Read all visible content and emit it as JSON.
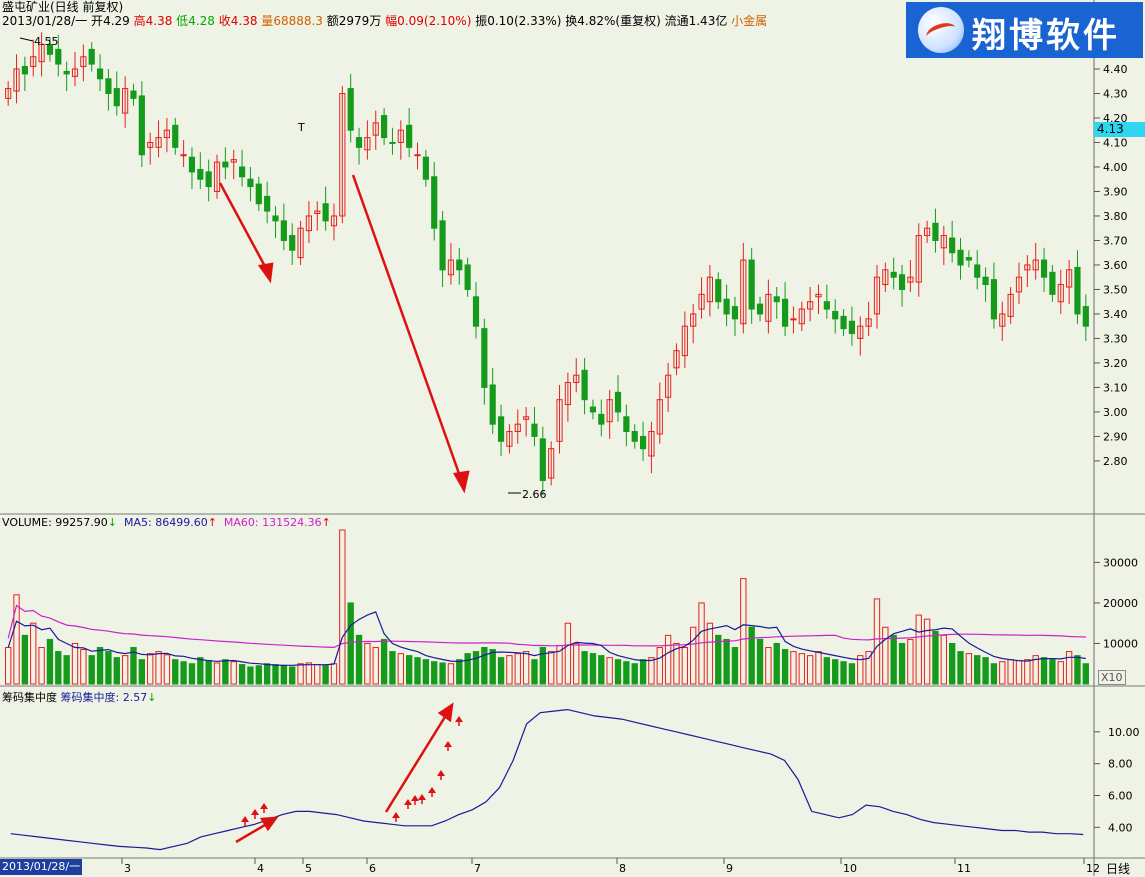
{
  "header": {
    "title": "盛屯矿业(日线 前复权)",
    "date": "2013/01/28/一",
    "open_label": "开",
    "open": "4.29",
    "high_label": "高",
    "high": "4.38",
    "low_label": "低",
    "low": "4.28",
    "close_label": "收",
    "close": "4.38",
    "vol_label": "量",
    "vol": "68888.3",
    "amount_label": "额",
    "amount": "2979万",
    "change_label": "幅",
    "change": "0.09(2.10%)",
    "amp_label": "振",
    "amp": "0.10(2.33%)",
    "turn_label": "换",
    "turn": "4.82%(重复权)",
    "float_label": "流通",
    "float": "1.43亿",
    "sector": "小金属"
  },
  "logo": {
    "text": "翔博软件"
  },
  "price_tag": "4.13",
  "marks": {
    "high": "4.55",
    "low": "2.66",
    "t_mark": "T"
  },
  "volume_header": {
    "label": "VOLUME: 99257.90",
    "ma5": "MA5: 86499.60",
    "ma60": "MA60: 131524.36",
    "down_arrow": "↓",
    "up_arrow": "↑"
  },
  "chip_header": {
    "title": "筹码集中度",
    "label": "筹码集中度: 2.57",
    "arrow": "↓"
  },
  "x10": "X10",
  "bottom_date": "2013/01/28/一",
  "period": "日线",
  "colors": {
    "up": "#e8201c",
    "down": "#159a1b",
    "ma5": "#1a1a9a",
    "ma60": "#cc22cc",
    "chip": "#1a1a9a",
    "arrow": "#dd1111"
  },
  "chart_data": [
    {
      "type": "candlestick",
      "title": "盛屯矿业(日线 前复权)",
      "y_ticks": [
        2.8,
        2.9,
        3.0,
        3.1,
        3.2,
        3.3,
        3.4,
        3.5,
        3.6,
        3.7,
        3.8,
        3.9,
        4.0,
        4.1,
        4.2,
        4.3,
        4.4
      ],
      "ylim": [
        2.62,
        4.6
      ],
      "annotations": [
        "4.55",
        "2.66",
        "T"
      ],
      "closes": [
        4.32,
        4.4,
        4.38,
        4.45,
        4.5,
        4.46,
        4.42,
        4.38,
        4.4,
        4.45,
        4.42,
        4.36,
        4.3,
        4.25,
        4.32,
        4.28,
        4.05,
        4.1,
        4.12,
        4.15,
        4.08,
        4.05,
        3.98,
        3.95,
        3.92,
        4.02,
        4.0,
        4.03,
        3.96,
        3.92,
        3.85,
        3.82,
        3.78,
        3.7,
        3.66,
        3.75,
        3.8,
        3.82,
        3.78,
        3.8,
        4.3,
        4.15,
        4.08,
        4.12,
        4.18,
        4.12,
        4.1,
        4.15,
        4.08,
        4.05,
        3.95,
        3.75,
        3.58,
        3.62,
        3.58,
        3.5,
        3.35,
        3.1,
        2.95,
        2.88,
        2.92,
        2.95,
        2.98,
        2.9,
        2.72,
        2.85,
        3.05,
        3.12,
        3.15,
        3.05,
        3.0,
        2.95,
        3.05,
        3.0,
        2.92,
        2.88,
        2.85,
        2.92,
        3.05,
        3.15,
        3.25,
        3.35,
        3.4,
        3.48,
        3.55,
        3.45,
        3.4,
        3.38,
        3.62,
        3.42,
        3.4,
        3.48,
        3.45,
        3.35,
        3.38,
        3.42,
        3.45,
        3.48,
        3.42,
        3.38,
        3.34,
        3.32,
        3.35,
        3.38,
        3.55,
        3.58,
        3.55,
        3.5,
        3.55,
        3.72,
        3.75,
        3.7,
        3.72,
        3.65,
        3.6,
        3.62,
        3.55,
        3.52,
        3.38,
        3.4,
        3.48,
        3.55,
        3.6,
        3.62,
        3.55,
        3.48,
        3.52,
        3.58,
        3.4,
        3.35
      ]
    },
    {
      "type": "bar",
      "title": "VOLUME",
      "y_ticks": [
        10000,
        20000,
        30000
      ],
      "ylim": [
        0,
        38000
      ],
      "series": [
        {
          "name": "MA5",
          "values": []
        },
        {
          "name": "MA60",
          "values": []
        }
      ],
      "values": [
        9000,
        22000,
        12000,
        15000,
        9000,
        11000,
        8000,
        7000,
        10000,
        8500,
        7000,
        9000,
        8000,
        6500,
        7000,
        9000,
        6000,
        7500,
        8000,
        7200,
        6000,
        5500,
        5000,
        6500,
        5800,
        5200,
        6000,
        5500,
        4800,
        4200,
        4500,
        5000,
        4800,
        4600,
        4200,
        5000,
        5200,
        4800,
        4600,
        5000,
        38000,
        20000,
        12000,
        10000,
        9000,
        11000,
        8000,
        7500,
        7000,
        6500,
        6000,
        5500,
        5200,
        5000,
        6000,
        7500,
        8000,
        9000,
        8500,
        6500,
        7000,
        7500,
        8000,
        6000,
        9000,
        8000,
        9500,
        15000,
        10000,
        8000,
        7500,
        7000,
        6500,
        6000,
        5500,
        5000,
        6000,
        6500,
        9000,
        12000,
        10000,
        9000,
        14000,
        20000,
        15000,
        12000,
        11000,
        9000,
        26000,
        14000,
        11000,
        9000,
        10000,
        8500,
        8000,
        7500,
        7000,
        8000,
        6500,
        6000,
        5500,
        5000,
        7000,
        8000,
        21000,
        14000,
        12000,
        10000,
        11000,
        17000,
        16000,
        13000,
        12000,
        10000,
        8000,
        7500,
        7000,
        6500,
        5000,
        5500,
        6000,
        5800,
        6000,
        7000,
        6500,
        6000,
        5500,
        8000,
        7000,
        5000
      ]
    },
    {
      "type": "line",
      "title": "筹码集中度",
      "y_ticks": [
        4.0,
        6.0,
        8.0,
        10.0
      ],
      "ylim": [
        2.2,
        12.0
      ],
      "x_ticks": [
        "3",
        "4",
        "5",
        "6",
        "7",
        "8",
        "9",
        "10",
        "11",
        "12"
      ],
      "values": [
        3.6,
        3.5,
        3.4,
        3.3,
        3.2,
        3.1,
        3.0,
        2.9,
        2.8,
        2.75,
        2.7,
        2.6,
        2.8,
        3.0,
        3.4,
        3.6,
        3.8,
        4.0,
        4.2,
        4.5,
        4.8,
        5.0,
        5.0,
        4.9,
        4.8,
        4.6,
        4.4,
        4.3,
        4.2,
        4.1,
        4.1,
        4.1,
        4.4,
        4.8,
        5.1,
        5.6,
        6.5,
        8.2,
        10.5,
        11.2,
        11.3,
        11.4,
        11.2,
        11.0,
        10.9,
        10.8,
        10.6,
        10.4,
        10.2,
        10.0,
        9.8,
        9.6,
        9.4,
        9.2,
        9.0,
        8.8,
        8.6,
        8.2,
        7.0,
        5.0,
        4.8,
        4.6,
        4.8,
        5.4,
        5.3,
        5.0,
        4.8,
        4.5,
        4.3,
        4.2,
        4.1,
        4.0,
        3.9,
        3.8,
        3.8,
        3.7,
        3.7,
        3.6,
        3.6,
        3.55
      ]
    }
  ]
}
